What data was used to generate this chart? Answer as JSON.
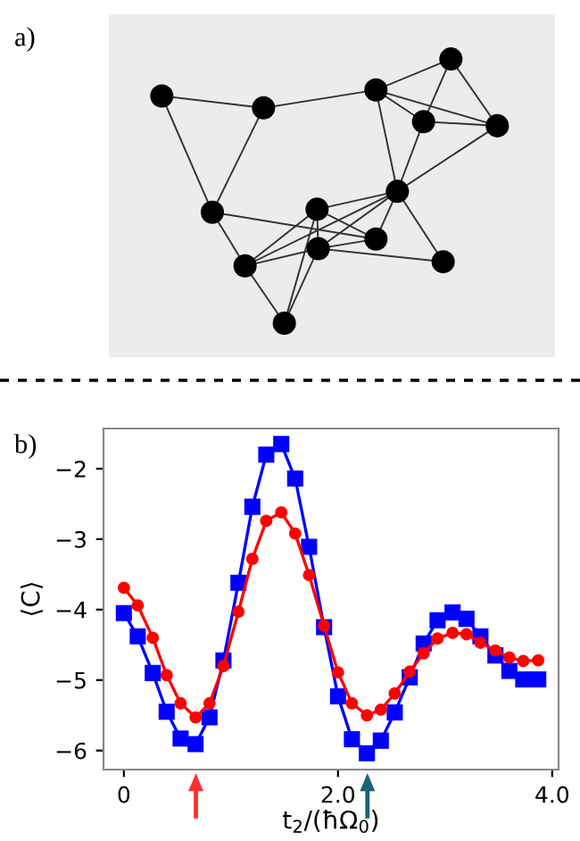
{
  "chart_data": {
    "type": "line",
    "x": [
      0,
      0.13,
      0.27,
      0.4,
      0.53,
      0.67,
      0.8,
      0.93,
      1.07,
      1.2,
      1.33,
      1.47,
      1.6,
      1.73,
      1.87,
      2.0,
      2.13,
      2.27,
      2.4,
      2.53,
      2.67,
      2.8,
      2.93,
      3.07,
      3.2,
      3.33,
      3.47,
      3.6,
      3.73,
      3.87
    ],
    "series": [
      {
        "color": "#0000ff",
        "marker": "square",
        "values": [
          -4.05,
          -4.38,
          -4.9,
          -5.45,
          -5.83,
          -5.91,
          -5.53,
          -4.72,
          -3.62,
          -2.54,
          -1.8,
          -1.65,
          -2.14,
          -3.11,
          -4.25,
          -5.23,
          -5.84,
          -6.04,
          -5.86,
          -5.46,
          -4.96,
          -4.48,
          -4.15,
          -4.04,
          -4.13,
          -4.38,
          -4.65,
          -4.87,
          -4.99,
          -4.99
        ]
      },
      {
        "color": "#ff0000",
        "marker": "circle",
        "values": [
          -3.69,
          -3.94,
          -4.4,
          -4.93,
          -5.33,
          -5.53,
          -5.33,
          -4.8,
          -4.03,
          -3.28,
          -2.74,
          -2.62,
          -2.92,
          -3.51,
          -4.23,
          -4.89,
          -5.33,
          -5.5,
          -5.42,
          -5.19,
          -4.88,
          -4.62,
          -4.41,
          -4.33,
          -4.35,
          -4.47,
          -4.58,
          -4.68,
          -4.73,
          -4.72
        ]
      }
    ],
    "xlim": [
      -0.19,
      4.06
    ],
    "ylim": [
      -6.27,
      -1.43
    ],
    "xticks": [
      0,
      {
        "value": 2,
        "label": "2.0"
      },
      {
        "value": 4,
        "label": "4.0"
      }
    ],
    "yticks": [
      {
        "value": -6,
        "label": "−6"
      },
      {
        "value": -5,
        "label": "−5"
      },
      {
        "value": -4,
        "label": "−4"
      },
      {
        "value": -3,
        "label": "−3"
      },
      {
        "value": -2,
        "label": "−2"
      }
    ],
    "xlabel": "t$_{2}$/(ħΩ$_{0}$)",
    "ylabel": "⟨C⟩",
    "annotations": [
      "a)",
      "b)"
    ]
  }
}
